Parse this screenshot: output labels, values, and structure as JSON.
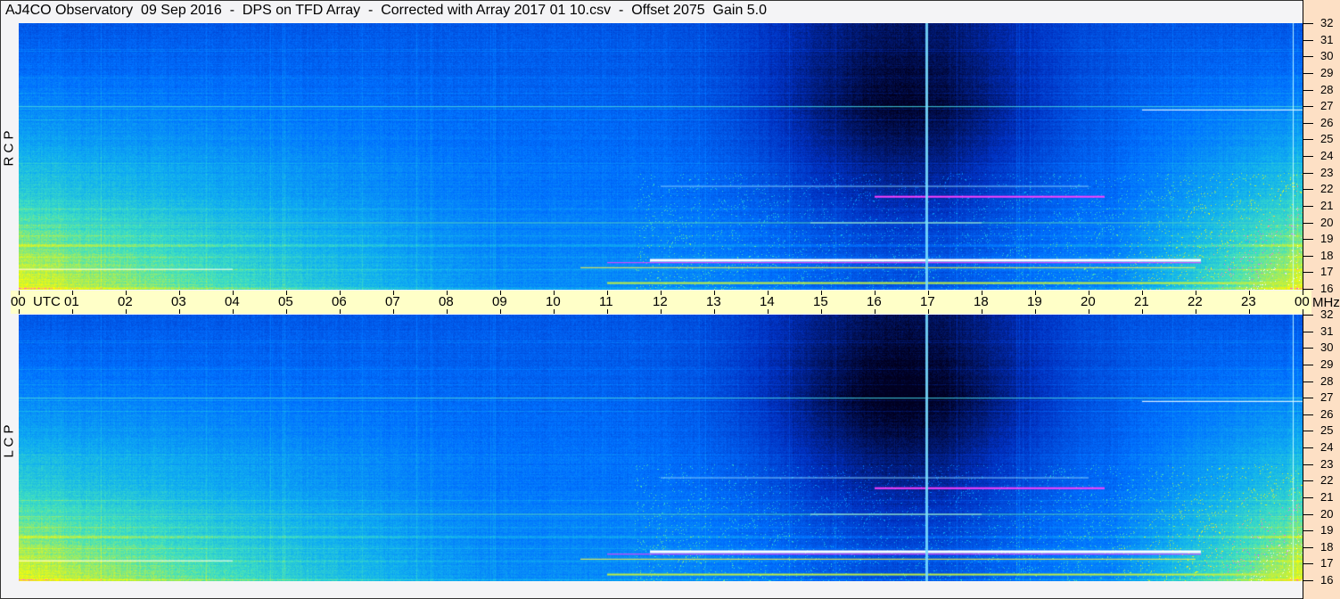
{
  "title": "AJ4CO Observatory  09 Sep 2016  -  DPS on TFD Array  -  Corrected with Array 2017 01 10.csv  -  Offset 2075  Gain 5.0",
  "chart_data": {
    "type": "heatmap",
    "title": "AJ4CO Observatory  09 Sep 2016  -  DPS on TFD Array  -  Corrected with Array 2017 01 10.csv  -  Offset 2075  Gain 5.0",
    "panels": [
      {
        "label": "R C P",
        "name": "RCP"
      },
      {
        "label": "L C P",
        "name": "LCP"
      }
    ],
    "xlabel": "UTC",
    "x_ticks": [
      "00",
      "01",
      "02",
      "03",
      "04",
      "05",
      "06",
      "07",
      "08",
      "09",
      "10",
      "11",
      "12",
      "13",
      "14",
      "15",
      "16",
      "17",
      "18",
      "19",
      "20",
      "21",
      "22",
      "23",
      "00"
    ],
    "xlim": [
      0,
      24
    ],
    "ylabel": "MHz",
    "y_ticks": [
      32,
      31,
      30,
      29,
      28,
      27,
      26,
      25,
      24,
      23,
      22,
      21,
      20,
      19,
      18,
      17,
      16
    ],
    "ylim": [
      16,
      32
    ],
    "colormap": [
      "#000020",
      "#0030c0",
      "#0070ff",
      "#10b0f0",
      "#40e0c0",
      "#c0f040",
      "#ffff00",
      "#ff40ff",
      "#ffffff"
    ],
    "features": {
      "night_enhancement_hours": [
        [
          0,
          10
        ],
        [
          20.5,
          24
        ]
      ],
      "daytime_absorption_center_hour": 16.5,
      "strong_interference_lines_mhz": [
        17.8,
        20.0,
        21.6,
        22.2,
        27.0
      ]
    }
  },
  "colors": {
    "background": "#f4f4f6",
    "time_bar": "#ffffc8",
    "freq_axis": "#fde0c5"
  }
}
